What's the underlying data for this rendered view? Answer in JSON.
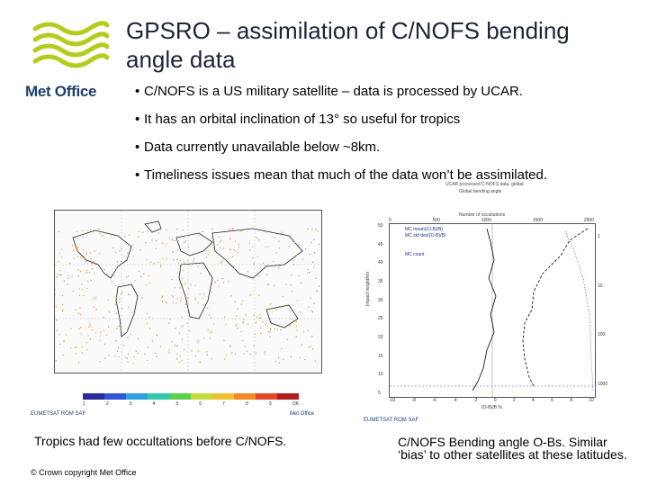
{
  "header": {
    "logo_text": "Met Office",
    "title": "GPSRO – assimilation of C/NOFS bending angle data"
  },
  "bullets": [
    "C/NOFS is a US military satellite – data is processed by UCAR.",
    "It has an orbital inclination of 13° so useful for tropics",
    "Data currently unavailable below ~8km.",
    "Timeliness issues mean that much of the data won’t be assimilated."
  ],
  "map_figure": {
    "legend_labels": [
      "1",
      "2",
      "3",
      "4",
      "5",
      "6",
      "7",
      "8",
      "9",
      "OK"
    ],
    "footer_left": "EUMETSAT  ROM SAF",
    "footer_right": "Met Office"
  },
  "profile_figure": {
    "header_lines": [
      "UCAR processed C-NOFS data, global",
      "Global bending angle"
    ],
    "top_axis_label": "Number of occultations",
    "top_ticks": [
      "0",
      "500",
      "1000",
      "1500",
      "2000"
    ],
    "bottom_ticks": [
      "-10",
      "-8",
      "-6",
      "-4",
      "-2",
      "0",
      "2",
      "4",
      "6",
      "8",
      "10"
    ],
    "left_ticks": [
      "50",
      "45",
      "40",
      "35",
      "30",
      "25",
      "20",
      "15",
      "10",
      "5"
    ],
    "right_ticks": [
      "1",
      "10",
      "100",
      "1000"
    ],
    "legend": [
      "MC mean((O-B)/B)",
      "MC std dev((O-B)/B)",
      "MC count"
    ],
    "y_label": "Impact height/km",
    "x_label": "(O-B)/B %",
    "footer_left": "EUMETSAT  ROM SAF"
  },
  "captions": {
    "left": "Tropics had few occultations before C/NOFS.",
    "copyright": "© Crown copyright   Met Office",
    "right": "C/NOFS Bending angle O-Bs. Similar ‘bias’ to other satellites at these latitudes."
  },
  "colors": {
    "logo_green": "#b5cc1e",
    "logo_blue": "#1d3f6e",
    "title": "#1c2438",
    "occultation_dots": "#d9a04a"
  }
}
